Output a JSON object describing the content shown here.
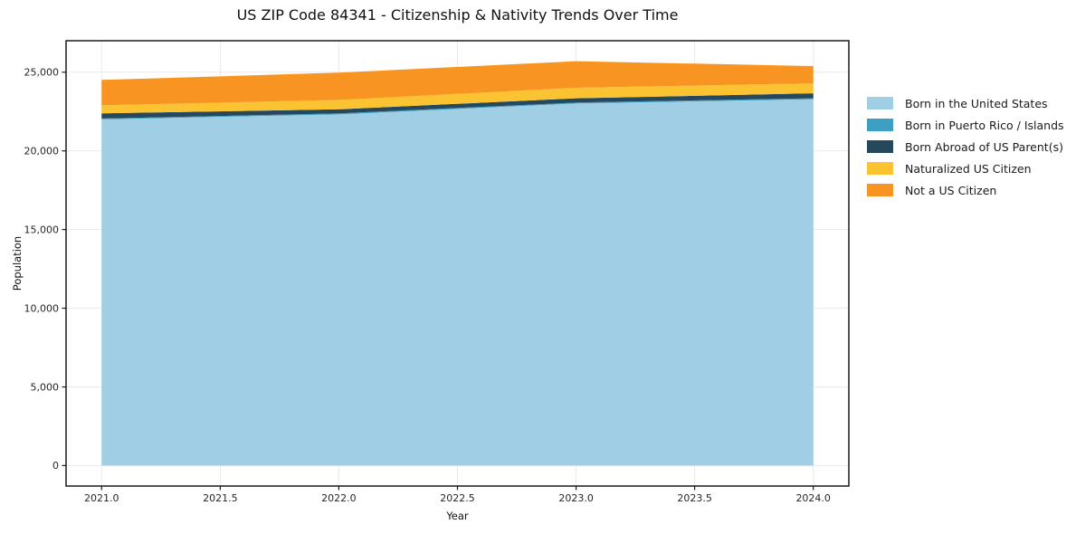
{
  "chart_data": {
    "type": "area",
    "stacked": true,
    "title": "US ZIP Code 84341 - Citizenship & Nativity Trends Over Time",
    "xlabel": "Year",
    "ylabel": "Population",
    "x": [
      2021,
      2022,
      2023,
      2024
    ],
    "series": [
      {
        "name": "Born in the United States",
        "color": "#a0cfe5",
        "values": [
          22000,
          22320,
          23010,
          23280
        ]
      },
      {
        "name": "Born in Puerto Rico / Islands",
        "color": "#3d9fc2",
        "values": [
          60,
          60,
          60,
          60
        ]
      },
      {
        "name": "Born Abroad of US Parent(s)",
        "color": "#25485c",
        "values": [
          320,
          260,
          270,
          320
        ]
      },
      {
        "name": "Naturalized US Citizen",
        "color": "#fbc331",
        "values": [
          520,
          600,
          670,
          630
        ]
      },
      {
        "name": "Not a US Citizen",
        "color": "#f79422",
        "values": [
          1610,
          1730,
          1690,
          1100
        ]
      }
    ],
    "totals": [
      24510,
      24970,
      25700,
      25390
    ],
    "xticks": [
      2021.0,
      2021.5,
      2022.0,
      2022.5,
      2023.0,
      2023.5,
      2024.0
    ],
    "xtick_labels": [
      "2021.0",
      "2021.5",
      "2022.0",
      "2022.5",
      "2023.0",
      "2023.5",
      "2024.0"
    ],
    "yticks": [
      0,
      5000,
      10000,
      15000,
      20000,
      25000
    ],
    "ytick_labels": [
      "0",
      "5,000",
      "10,000",
      "15,000",
      "20,000",
      "25,000"
    ],
    "xlim": [
      2020.85,
      2024.15
    ],
    "ylim": [
      -1300,
      27000
    ],
    "grid": true,
    "grid_color": "#e9e9e9",
    "frame_color": "#1a1a1a",
    "text_color": "#262626",
    "legend_position": "right",
    "legend_frame": false
  }
}
